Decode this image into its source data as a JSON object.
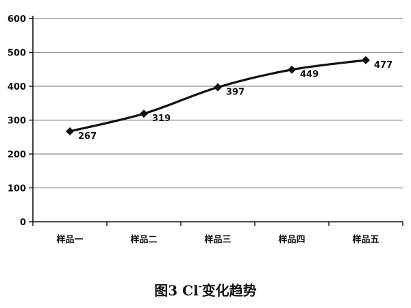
{
  "caption": {
    "prefix": "图3 Cl",
    "superscript": "-",
    "suffix": "变化趋势"
  },
  "chart_data": {
    "type": "line",
    "title": "",
    "xlabel": "",
    "ylabel": "",
    "categories": [
      "样品一",
      "样品二",
      "样品三",
      "样品四",
      "样品五"
    ],
    "series": [
      {
        "values": [
          267,
          319,
          397,
          449,
          477
        ],
        "marker": "diamond",
        "color": "#111111"
      }
    ],
    "data_labels": [
      "267",
      "319",
      "397",
      "449",
      "477"
    ],
    "ylim": [
      0,
      600
    ],
    "yticks": [
      0,
      100,
      200,
      300,
      400,
      500,
      600
    ],
    "ytick_labels": [
      "0",
      "100",
      "200",
      "300",
      "400",
      "500",
      "600"
    ],
    "grid": true,
    "legend": "none"
  }
}
